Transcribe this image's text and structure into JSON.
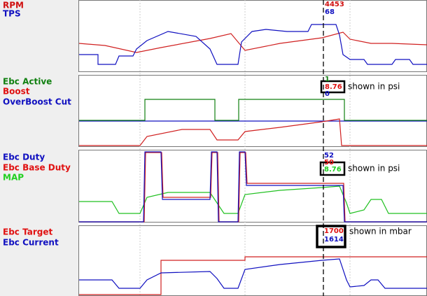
{
  "panels": [
    {
      "labels": [
        {
          "text": "RPM",
          "color": "#d01010"
        },
        {
          "text": "TPS",
          "color": "#1010c0"
        }
      ],
      "cursor_values": [
        {
          "text": "4453",
          "color": "#d01010"
        },
        {
          "text": "68",
          "color": "#1010c0"
        }
      ]
    },
    {
      "labels": [
        {
          "text": "Ebc Active",
          "color": "#108010"
        },
        {
          "text": "Boost",
          "color": "#e01010"
        },
        {
          "text": "OverBoost Cut",
          "color": "#1010c0"
        }
      ],
      "cursor_values": [
        {
          "text": "1",
          "color": "#108010"
        },
        {
          "text": "8.76",
          "color": "#e01010"
        },
        {
          "text": "0",
          "color": "#1010c0"
        }
      ],
      "note": "shown in psi"
    },
    {
      "labels": [
        {
          "text": "Ebc Duty",
          "color": "#1010c0"
        },
        {
          "text": "Ebc Base Duty",
          "color": "#e01010"
        },
        {
          "text": "MAP",
          "color": "#20d020"
        }
      ],
      "cursor_values": [
        {
          "text": "52",
          "color": "#1010c0"
        },
        {
          "text": "50",
          "color": "#e01010"
        },
        {
          "text": "8.76",
          "color": "#20d020"
        }
      ],
      "note": "shown in psi"
    },
    {
      "labels": [
        {
          "text": "Ebc Target",
          "color": "#e01010"
        },
        {
          "text": "Ebc Current",
          "color": "#1010c0"
        }
      ],
      "cursor_values": [
        {
          "text": "1700",
          "color": "#e01010"
        },
        {
          "text": "1614",
          "color": "#1010c0"
        }
      ],
      "note": "shown in mbar"
    }
  ]
}
